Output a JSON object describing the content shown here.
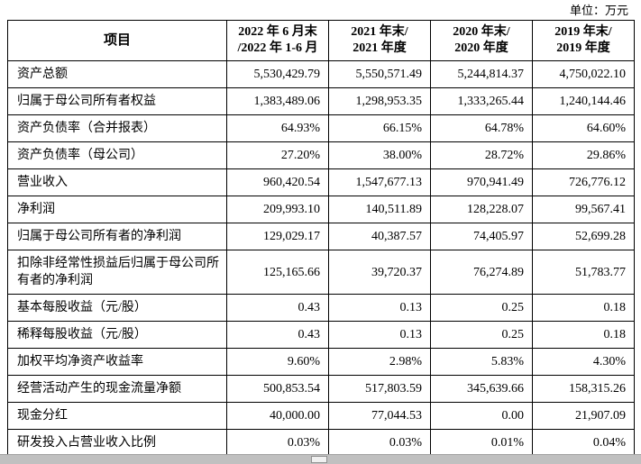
{
  "meta": {
    "unit_label": "单位：万元"
  },
  "colors": {
    "border": "#000000",
    "background": "#ffffff",
    "scrollbar_track": "#c0c0c0"
  },
  "table": {
    "header": {
      "item": "项目",
      "columns": [
        {
          "line1": "2022 年 6 月末",
          "line2": "/2022 年 1-6 月"
        },
        {
          "line1": "2021 年末/",
          "line2": "2021 年度"
        },
        {
          "line1": "2020 年末/",
          "line2": "2020 年度"
        },
        {
          "line1": "2019 年末/",
          "line2": "2019 年度"
        }
      ]
    },
    "rows": [
      {
        "label": "资产总额",
        "values": [
          "5,530,429.79",
          "5,550,571.49",
          "5,244,814.37",
          "4,750,022.10"
        ]
      },
      {
        "label": "归属于母公司所有者权益",
        "values": [
          "1,383,489.06",
          "1,298,953.35",
          "1,333,265.44",
          "1,240,144.46"
        ]
      },
      {
        "label": "资产负债率（合并报表）",
        "values": [
          "64.93%",
          "66.15%",
          "64.78%",
          "64.60%"
        ]
      },
      {
        "label": "资产负债率（母公司）",
        "values": [
          "27.20%",
          "38.00%",
          "28.72%",
          "29.86%"
        ]
      },
      {
        "label": "营业收入",
        "values": [
          "960,420.54",
          "1,547,677.13",
          "970,941.49",
          "726,776.12"
        ]
      },
      {
        "label": "净利润",
        "values": [
          "209,993.10",
          "140,511.89",
          "128,228.07",
          "99,567.41"
        ]
      },
      {
        "label": "归属于母公司所有者的净利润",
        "values": [
          "129,029.17",
          "40,387.57",
          "74,405.97",
          "52,699.28"
        ]
      },
      {
        "label": "扣除非经常性损益后归属于母公司所有者的净利润",
        "values": [
          "125,165.66",
          "39,720.37",
          "76,274.89",
          "51,783.77"
        ]
      },
      {
        "label": "基本每股收益（元/股）",
        "values": [
          "0.43",
          "0.13",
          "0.25",
          "0.18"
        ]
      },
      {
        "label": "稀释每股收益（元/股）",
        "values": [
          "0.43",
          "0.13",
          "0.25",
          "0.18"
        ]
      },
      {
        "label": "加权平均净资产收益率",
        "values": [
          "9.60%",
          "2.98%",
          "5.83%",
          "4.30%"
        ]
      },
      {
        "label": "经营活动产生的现金流量净额",
        "values": [
          "500,853.54",
          "517,803.59",
          "345,639.66",
          "158,315.26"
        ]
      },
      {
        "label": "现金分红",
        "values": [
          "40,000.00",
          "77,044.53",
          "0.00",
          "21,907.09"
        ]
      },
      {
        "label": "研发投入占营业收入比例",
        "values": [
          "0.03%",
          "0.03%",
          "0.01%",
          "0.04%"
        ]
      }
    ]
  }
}
